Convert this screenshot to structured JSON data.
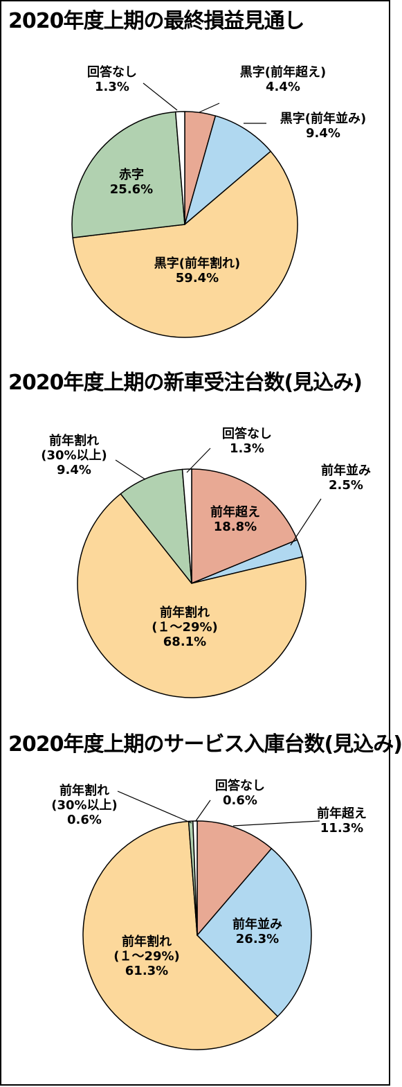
{
  "chart_data": [
    {
      "type": "pie",
      "title": "2020年度上期の最終損益見通し",
      "slices": [
        {
          "label": "黒字(前年超え)",
          "lines": [
            "黒字(前年超え)"
          ],
          "value": 4.4,
          "value_text": "4.4%",
          "color": "#e8a994"
        },
        {
          "label": "黒字(前年並み)",
          "lines": [
            "黒字(前年並み)"
          ],
          "value": 9.4,
          "value_text": "9.4%",
          "color": "#b0d8f0"
        },
        {
          "label": "黒字(前年割れ)",
          "lines": [
            "黒字(前年割れ)"
          ],
          "value": 59.4,
          "value_text": "59.4%",
          "color": "#fcd89b"
        },
        {
          "label": "赤字",
          "lines": [
            "赤字"
          ],
          "value": 25.6,
          "value_text": "25.6%",
          "color": "#b1d1b0"
        },
        {
          "label": "回答なし",
          "lines": [
            "回答なし"
          ],
          "value": 1.3,
          "value_text": "1.3%",
          "color": "#ffffff"
        }
      ]
    },
    {
      "type": "pie",
      "title": "2020年度上期の新車受注台数(見込み)",
      "slices": [
        {
          "label": "前年超え",
          "lines": [
            "前年超え"
          ],
          "value": 18.8,
          "value_text": "18.8%",
          "color": "#e8a994"
        },
        {
          "label": "前年並み",
          "lines": [
            "前年並み"
          ],
          "value": 2.5,
          "value_text": "2.5%",
          "color": "#b0d8f0"
        },
        {
          "label": "前年割れ(1～29%)",
          "lines": [
            "前年割れ",
            "(１～29%)"
          ],
          "value": 68.1,
          "value_text": "68.1%",
          "color": "#fcd89b"
        },
        {
          "label": "前年割れ(30%以上)",
          "lines": [
            "前年割れ",
            "(30%以上)"
          ],
          "value": 9.4,
          "value_text": "9.4%",
          "color": "#b1d1b0"
        },
        {
          "label": "回答なし",
          "lines": [
            "回答なし"
          ],
          "value": 1.3,
          "value_text": "1.3%",
          "color": "#ffffff"
        }
      ]
    },
    {
      "type": "pie",
      "title": "2020年度上期のサービス入庫台数(見込み)",
      "slices": [
        {
          "label": "前年超え",
          "lines": [
            "前年超え"
          ],
          "value": 11.3,
          "value_text": "11.3%",
          "color": "#e8a994"
        },
        {
          "label": "前年並み",
          "lines": [
            "前年並み"
          ],
          "value": 26.3,
          "value_text": "26.3%",
          "color": "#b0d8f0"
        },
        {
          "label": "前年割れ(1～29%)",
          "lines": [
            "前年割れ",
            "(１～29%)"
          ],
          "value": 61.3,
          "value_text": "61.3%",
          "color": "#fcd89b"
        },
        {
          "label": "前年割れ(30%以上)",
          "lines": [
            "前年割れ",
            "(30%以上)"
          ],
          "value": 0.6,
          "value_text": "0.6%",
          "color": "#b1d1b0"
        },
        {
          "label": "回答なし",
          "lines": [
            "回答なし"
          ],
          "value": 0.6,
          "value_text": "0.6%",
          "color": "#ffffff"
        }
      ]
    }
  ]
}
